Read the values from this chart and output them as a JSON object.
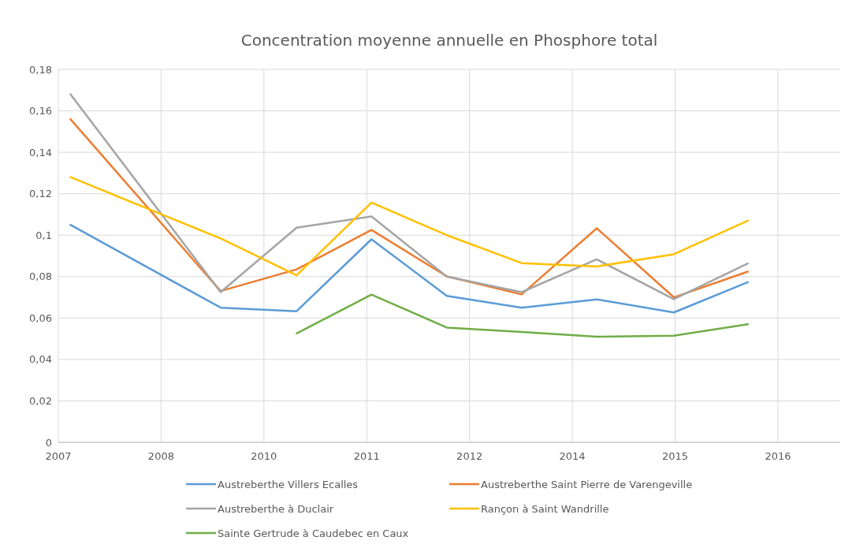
{
  "chart_data": {
    "type": "line",
    "title": "Concentration moyenne annuelle en Phosphore total",
    "x": [
      "2007-10-03",
      "2009-08-27",
      "2010-08-13",
      "2011-07-25",
      "2012-07-07",
      "2013-06-18",
      "2014-05-31",
      "2015-05-22",
      "2016-04-28"
    ],
    "xlim": [
      "2007-08-08",
      "2017-06-29"
    ],
    "xticks": [
      {
        "value": "2007-08-08",
        "label": "2007"
      },
      {
        "value": "2008-11-25",
        "label": "2008"
      },
      {
        "value": "2010-03-15",
        "label": "2010"
      },
      {
        "value": "2011-07-03",
        "label": "2011"
      },
      {
        "value": "2012-10-20",
        "label": "2012"
      },
      {
        "value": "2014-02-07",
        "label": "2014"
      },
      {
        "value": "2015-05-28",
        "label": "2015"
      },
      {
        "value": "2016-09-14",
        "label": "2016"
      }
    ],
    "ylim": [
      0,
      0.18
    ],
    "yticks": [
      {
        "value": 0,
        "label": "0"
      },
      {
        "value": 0.02,
        "label": "0,02"
      },
      {
        "value": 0.04,
        "label": "0,04"
      },
      {
        "value": 0.06,
        "label": "0,06"
      },
      {
        "value": 0.08,
        "label": "0,08"
      },
      {
        "value": 0.1,
        "label": "0,1"
      },
      {
        "value": 0.12,
        "label": "0,12"
      },
      {
        "value": 0.14,
        "label": "0,14"
      },
      {
        "value": 0.16,
        "label": "0,16"
      },
      {
        "value": 0.18,
        "label": "0,18"
      }
    ],
    "grid": true,
    "legend": "bottom",
    "marker": "none",
    "line_style": "solid",
    "series": [
      {
        "name": "Austreberthe Villers Ecalles",
        "color": "#5b9bd5",
        "values": [
          0.105,
          0.065,
          0.0633,
          0.098,
          0.0707,
          0.065,
          0.069,
          0.0627,
          0.0773
        ]
      },
      {
        "name": "Austreberthe Saint Pierre de Varengeville",
        "color": "#ed7d31",
        "values": [
          0.156,
          0.073,
          0.0835,
          0.1025,
          0.0801,
          0.0714,
          0.1033,
          0.07,
          0.0824
        ]
      },
      {
        "name": "Austreberthe à Duclair",
        "color": "#a5a5a5",
        "values": [
          0.168,
          0.0725,
          0.1036,
          0.109,
          0.08,
          0.0725,
          0.0883,
          0.0691,
          0.0863
        ]
      },
      {
        "name": "Rançon à Saint Wandrille",
        "color": "#ffc000",
        "values": [
          0.128,
          0.0984,
          0.0806,
          0.1157,
          0.1,
          0.0865,
          0.0849,
          0.0908,
          0.107
        ]
      },
      {
        "name": "Sainte Gertrude à Caudebec en Caux",
        "color": "#70ad47",
        "values": [
          null,
          null,
          0.0526,
          0.0713,
          0.0554,
          0.0533,
          0.051,
          0.0515,
          0.057
        ]
      }
    ]
  }
}
